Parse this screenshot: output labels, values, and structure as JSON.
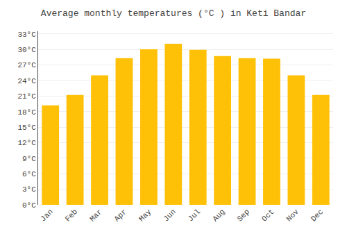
{
  "chart_data": {
    "type": "bar",
    "title": "Average monthly temperatures (°C ) in Keti Bandar",
    "categories": [
      "Jan",
      "Feb",
      "Mar",
      "Apr",
      "May",
      "Jun",
      "Jul",
      "Aug",
      "Sep",
      "Oct",
      "Nov",
      "Dec"
    ],
    "values": [
      19.2,
      21.2,
      25.0,
      28.3,
      30.0,
      31.1,
      29.9,
      28.7,
      28.3,
      28.2,
      25.0,
      21.2
    ],
    "color": "#FFC107",
    "ylim": [
      0,
      33.5
    ],
    "yticks": [
      {
        "value": 0,
        "label": "0°C"
      },
      {
        "value": 3,
        "label": "3°C"
      },
      {
        "value": 6,
        "label": "6°C"
      },
      {
        "value": 9,
        "label": "9°C"
      },
      {
        "value": 12,
        "label": "12°C"
      },
      {
        "value": 15,
        "label": "15°C"
      },
      {
        "value": 18,
        "label": "18°C"
      },
      {
        "value": 21,
        "label": "21°C"
      },
      {
        "value": 24,
        "label": "24°C"
      },
      {
        "value": 27,
        "label": "27°C"
      },
      {
        "value": 30,
        "label": "30°C"
      },
      {
        "value": 33,
        "label": "33°C"
      }
    ],
    "grid": true
  }
}
